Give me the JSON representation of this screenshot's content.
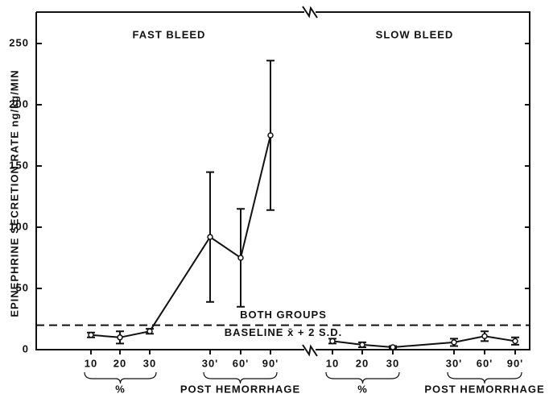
{
  "chart_data": [
    {
      "type": "line",
      "title": "FAST BLEED",
      "ylabel": "EPINEPHRINE SECRETION RATE ng/kg/MIN",
      "categories": [
        "10",
        "20",
        "30",
        "30'",
        "60'",
        "90'"
      ],
      "values": [
        12,
        10,
        15,
        92,
        75,
        175
      ],
      "errors": [
        2,
        5,
        2,
        53,
        40,
        61
      ],
      "group_labels": [
        "%",
        "POST HEMORRHAGE"
      ],
      "ylim": [
        0,
        250
      ],
      "yticks": [
        0,
        50,
        100,
        150,
        200,
        250
      ],
      "baseline": {
        "value": 20,
        "labels": [
          "BOTH GROUPS",
          "BASELINE x̄ + 2 S.D."
        ]
      }
    },
    {
      "type": "line",
      "title": "SLOW BLEED",
      "categories": [
        "10",
        "20",
        "30",
        "30'",
        "60'",
        "90'"
      ],
      "values": [
        7,
        4,
        2,
        6,
        11,
        7
      ],
      "errors": [
        2,
        2,
        1,
        3,
        4,
        3
      ],
      "group_labels": [
        "%",
        "POST HEMORRHAGE"
      ],
      "ylim": [
        0,
        250
      ]
    }
  ]
}
